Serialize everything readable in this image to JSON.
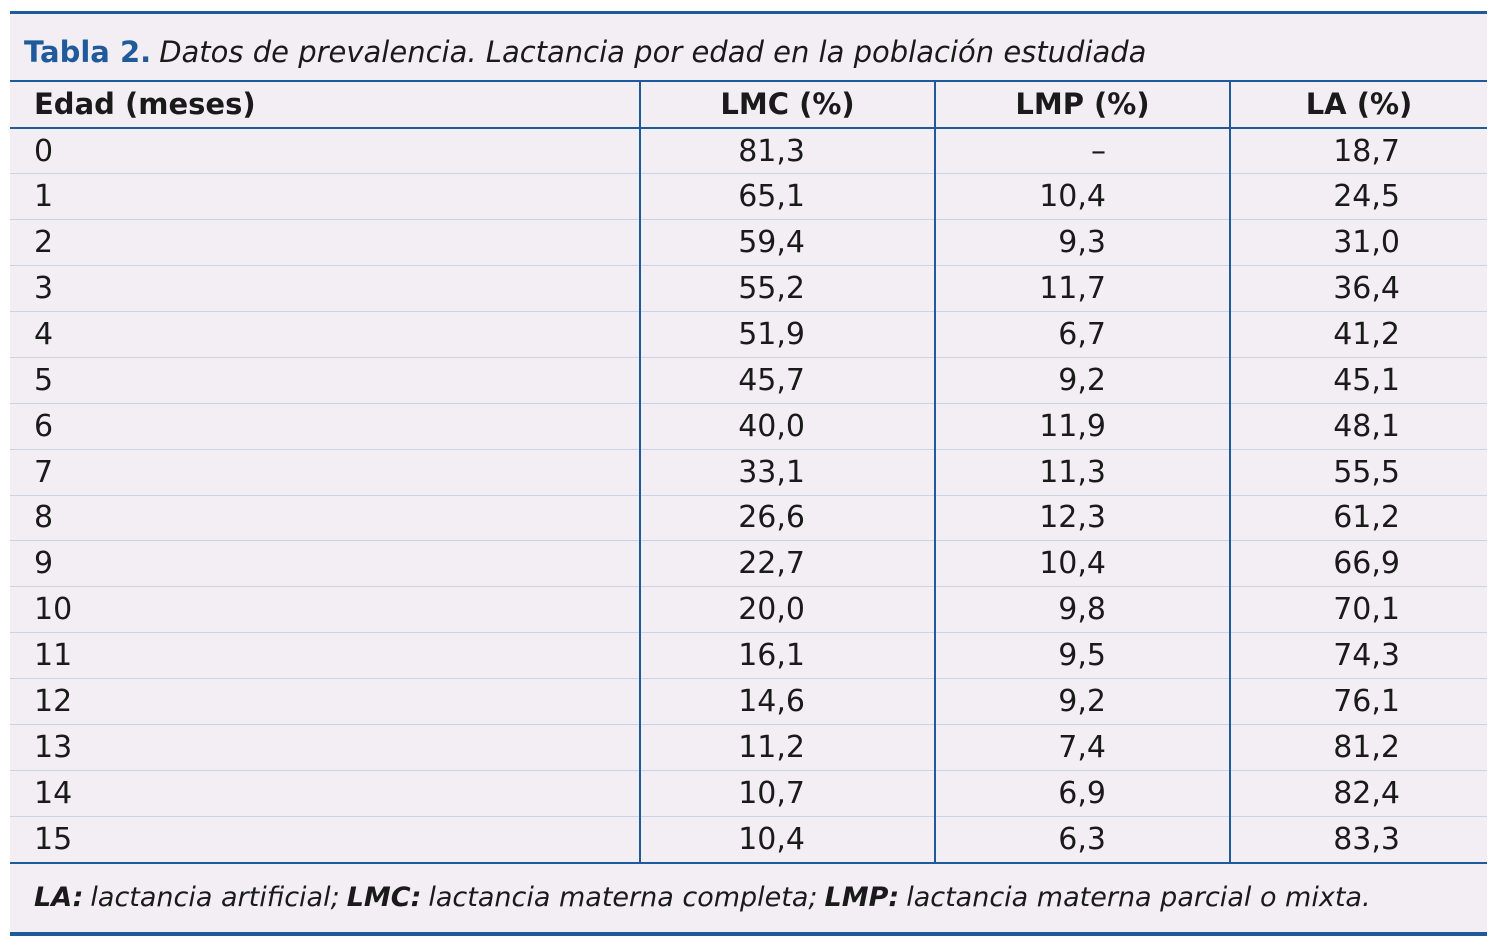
{
  "caption": {
    "label": "Tabla 2.",
    "text": "Datos de prevalencia. Lactancia por edad en la población estudiada"
  },
  "table": {
    "header": [
      "Edad (meses)",
      "LMC (%)",
      "LMP (%)",
      "LA (%)"
    ],
    "rows": [
      [
        "0",
        "81,3",
        "–",
        "18,7"
      ],
      [
        "1",
        "65,1",
        "10,4",
        "24,5"
      ],
      [
        "2",
        "59,4",
        "9,3",
        "31,0"
      ],
      [
        "3",
        "55,2",
        "11,7",
        "36,4"
      ],
      [
        "4",
        "51,9",
        "6,7",
        "41,2"
      ],
      [
        "5",
        "45,7",
        "9,2",
        "45,1"
      ],
      [
        "6",
        "40,0",
        "11,9",
        "48,1"
      ],
      [
        "7",
        "33,1",
        "11,3",
        "55,5"
      ],
      [
        "8",
        "26,6",
        "12,3",
        "61,2"
      ],
      [
        "9",
        "22,7",
        "10,4",
        "66,9"
      ],
      [
        "10",
        "20,0",
        "9,8",
        "70,1"
      ],
      [
        "11",
        "16,1",
        "9,5",
        "74,3"
      ],
      [
        "12",
        "14,6",
        "9,2",
        "76,1"
      ],
      [
        "13",
        "11,2",
        "7,4",
        "81,2"
      ],
      [
        "14",
        "10,7",
        "6,9",
        "82,4"
      ],
      [
        "15",
        "10,4",
        "6,3",
        "83,3"
      ]
    ]
  },
  "footnote": [
    {
      "term": "LA:",
      "definition": "lactancia artificial;"
    },
    {
      "term": "LMC:",
      "definition": "lactancia materna completa;"
    },
    {
      "term": "LMP:",
      "definition": "lactancia materna parcial o mixta."
    }
  ]
}
